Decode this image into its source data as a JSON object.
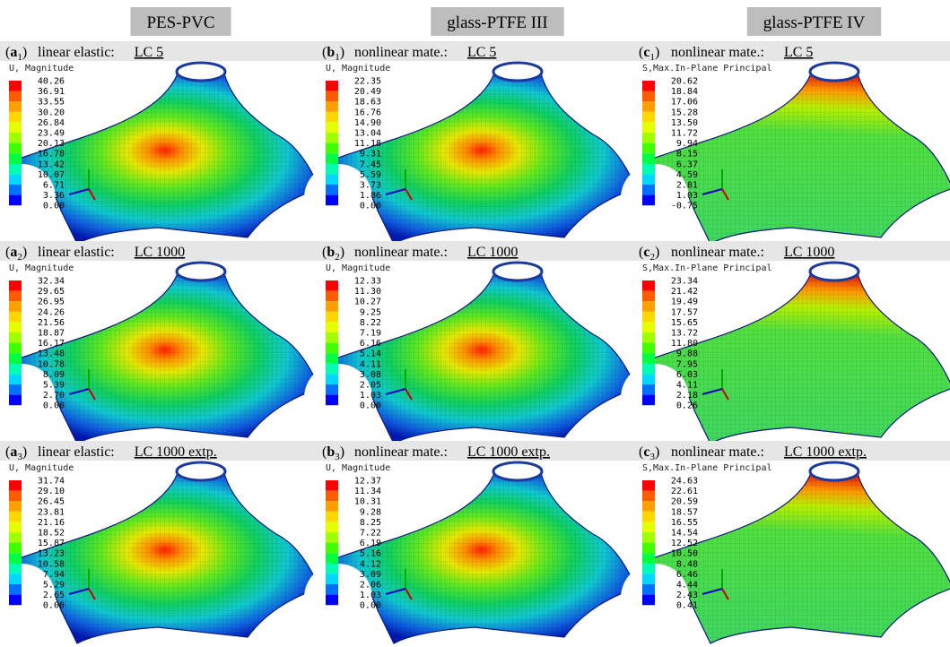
{
  "columns": [
    "PES-PVC",
    "glass-PTFE III",
    "glass-PTFE IV"
  ],
  "rows": [
    {
      "panels": [
        {
          "label": {
            "open": "(",
            "letter": "a",
            "index": "1",
            "close": ")"
          },
          "description": "linear elastic:",
          "load_case": "LC 5",
          "legend_title": "U, Magnitude",
          "legend_values": [
            "40.26",
            "36.91",
            "33.55",
            "30.20",
            "26.84",
            "23.49",
            "20.13",
            "16.78",
            "13.42",
            "10.07",
            "6.71",
            "3.36",
            "0.00"
          ]
        },
        {
          "label": {
            "open": "(",
            "letter": "b",
            "index": "1",
            "close": ")"
          },
          "description": "nonlinear mate.:",
          "load_case": "LC 5",
          "legend_title": "U, Magnitude",
          "legend_values": [
            "22.35",
            "20.49",
            "18.63",
            "16.76",
            "14.90",
            "13.04",
            "11.18",
            "9.31",
            "7.45",
            "5.59",
            "3.73",
            "1.86",
            "0.00"
          ]
        },
        {
          "label": {
            "open": "(",
            "letter": "c",
            "index": "1",
            "close": ")"
          },
          "description": "nonlinear mate.:",
          "load_case": "LC 5",
          "legend_title": "S,Max.In-Plane Principal",
          "legend_values": [
            "20.62",
            "18.84",
            "17.06",
            "15.28",
            "13.50",
            "11.72",
            "9.94",
            "8.15",
            "6.37",
            "4.59",
            "2.81",
            "1.03",
            "-0.75"
          ]
        }
      ]
    },
    {
      "panels": [
        {
          "label": {
            "open": "(",
            "letter": "a",
            "index": "2",
            "close": ")"
          },
          "description": "linear elastic:",
          "load_case": "LC 1000",
          "legend_title": "U, Magnitude",
          "legend_values": [
            "32.34",
            "29.65",
            "26.95",
            "24.26",
            "21.56",
            "18.87",
            "16.17",
            "13.48",
            "10.78",
            "8.09",
            "5.39",
            "2.70",
            "0.00"
          ]
        },
        {
          "label": {
            "open": "(",
            "letter": "b",
            "index": "2",
            "close": ")"
          },
          "description": "nonlinear mate.:",
          "load_case": "LC 1000",
          "legend_title": "U, Magnitude",
          "legend_values": [
            "12.33",
            "11.30",
            "10.27",
            "9.25",
            "8.22",
            "7.19",
            "6.16",
            "5.14",
            "4.11",
            "3.08",
            "2.05",
            "1.03",
            "0.00"
          ]
        },
        {
          "label": {
            "open": "(",
            "letter": "c",
            "index": "2",
            "close": ")"
          },
          "description": "nonlinear mate.:",
          "load_case": "LC 1000",
          "legend_title": "S,Max.In-Plane Principal",
          "legend_values": [
            "23.34",
            "21.42",
            "19.49",
            "17.57",
            "15.65",
            "13.72",
            "11.80",
            "9.88",
            "7.95",
            "6.03",
            "4.11",
            "2.18",
            "0.26"
          ]
        }
      ]
    },
    {
      "panels": [
        {
          "label": {
            "open": "(",
            "letter": "a",
            "index": "3",
            "close": ")"
          },
          "description": "linear elastic:",
          "load_case": "LC 1000 extp.",
          "legend_title": "U, Magnitude",
          "legend_values": [
            "31.74",
            "29.10",
            "26.45",
            "23.81",
            "21.16",
            "18.52",
            "15.87",
            "13.23",
            "10.58",
            "7.94",
            "5.29",
            "2.65",
            "0.00"
          ]
        },
        {
          "label": {
            "open": "(",
            "letter": "b",
            "index": "3",
            "close": ")"
          },
          "description": "nonlinear mate.:",
          "load_case": "LC 1000 extp.",
          "legend_title": "U, Magnitude",
          "legend_values": [
            "12.37",
            "11.34",
            "10.31",
            "9.28",
            "8.25",
            "7.22",
            "6.19",
            "5.16",
            "4.12",
            "3.09",
            "2.06",
            "1.03",
            "0.00"
          ]
        },
        {
          "label": {
            "open": "(",
            "letter": "c",
            "index": "3",
            "close": ")"
          },
          "description": "nonlinear mate.:",
          "load_case": "LC 1000 extp.",
          "legend_title": "S,Max.In-Plane Principal",
          "legend_values": [
            "24.63",
            "22.61",
            "20.59",
            "18.57",
            "16.55",
            "14.54",
            "12.52",
            "10.50",
            "8.48",
            "6.46",
            "4.44",
            "2.43",
            "0.41"
          ]
        }
      ]
    }
  ]
}
